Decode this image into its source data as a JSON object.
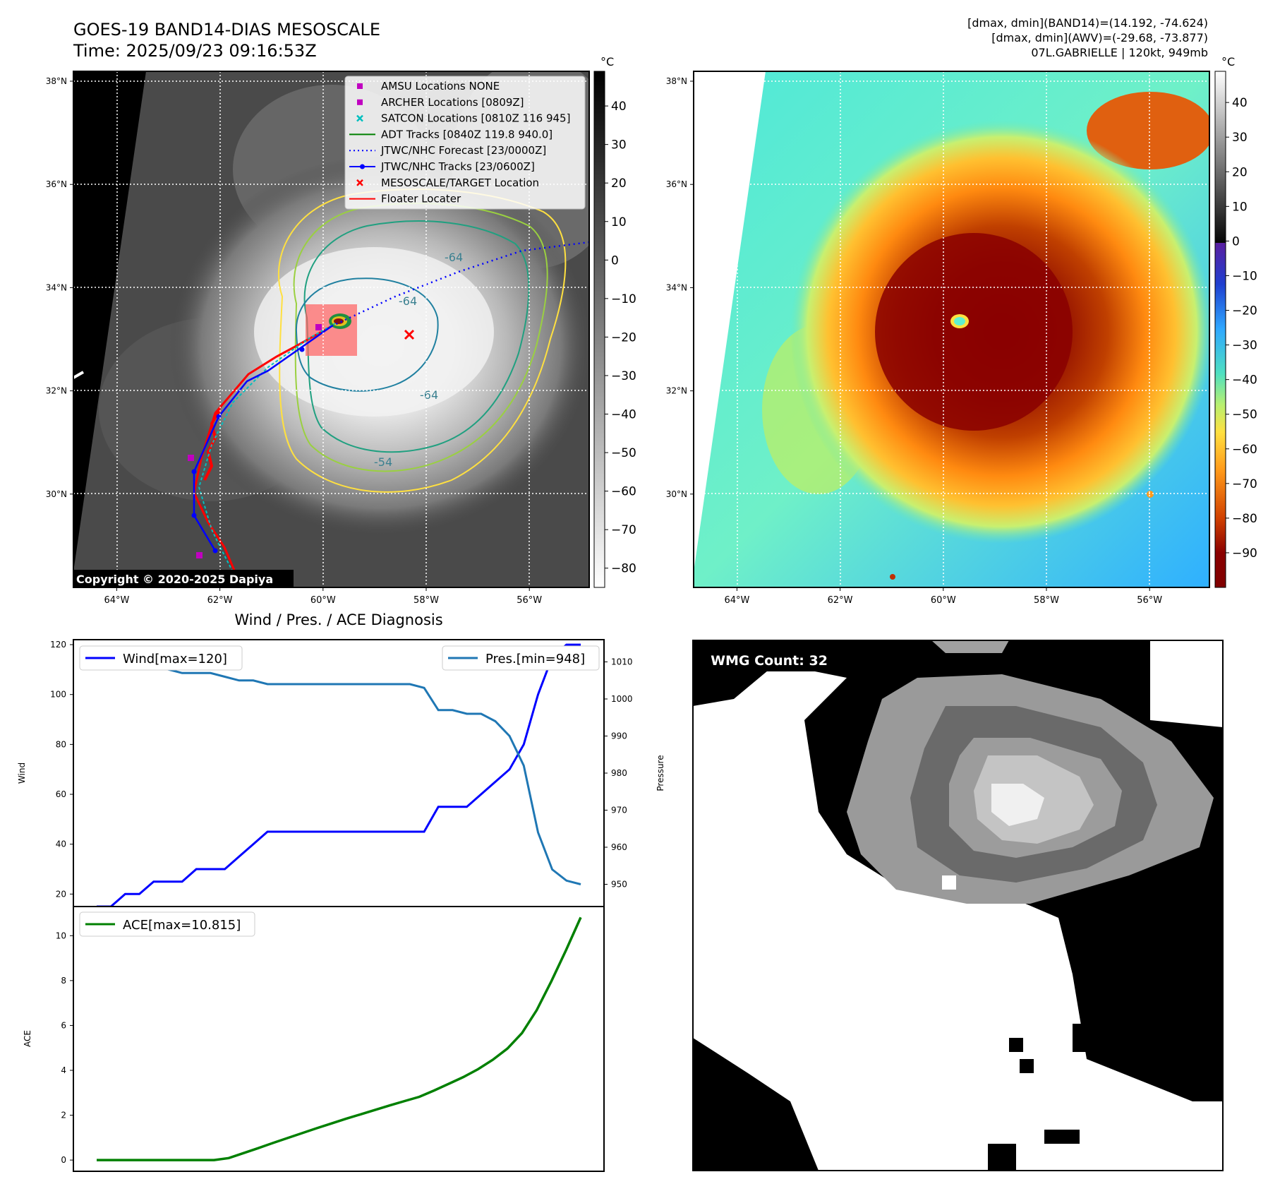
{
  "header": {
    "title_line1": "GOES-19 BAND14-DIAS MESOSCALE",
    "title_line2": "Time: 2025/09/23 09:16:53Z",
    "stats_line1": "[dmax, dmin](BAND14)=(14.192, -74.624)",
    "stats_line2": "[dmax, dmin](AWV)=(-29.68, -73.877)",
    "stats_line3": "07L.GABRIELLE | 120kt, 949mb"
  },
  "map": {
    "lon_ticks": [
      "64°W",
      "62°W",
      "60°W",
      "58°W",
      "56°W"
    ],
    "lat_ticks": [
      "38°N",
      "36°N",
      "34°N",
      "32°N",
      "30°N"
    ],
    "copyright": "Copyright © 2020-2025 Dapiya",
    "contour_labels": [
      "-64",
      "-64",
      "-54",
      "-64"
    ],
    "legend": [
      {
        "label": "AMSU Locations NONE",
        "marker": "square",
        "color": "#c000c0"
      },
      {
        "label": "ARCHER Locations [0809Z]",
        "marker": "square",
        "color": "#c000c0"
      },
      {
        "label": "SATCON Locations [0810Z 116 945]",
        "marker": "x",
        "color": "#00bfbf"
      },
      {
        "label": "ADT Tracks [0840Z 119.8 940.0]",
        "marker": "line",
        "color": "#008000"
      },
      {
        "label": "JTWC/NHC Forecast [23/0000Z]",
        "marker": "dotted",
        "color": "#0000ff"
      },
      {
        "label": "JTWC/NHC Tracks [23/0600Z]",
        "marker": "line-dot",
        "color": "#0000ff"
      },
      {
        "label": "MESOSCALE/TARGET Location",
        "marker": "x",
        "color": "#ff0000"
      },
      {
        "label": "Floater Locater",
        "marker": "line",
        "color": "#ff0000"
      }
    ]
  },
  "colorbar_gray": {
    "unit": "°C",
    "ticks": [
      "40",
      "30",
      "20",
      "10",
      "0",
      "−10",
      "−20",
      "−30",
      "−40",
      "−50",
      "−60",
      "−70",
      "−80"
    ],
    "range": [
      -85,
      49
    ]
  },
  "colorbar_color": {
    "unit": "°C",
    "ticks": [
      "40",
      "30",
      "20",
      "10",
      "0",
      "−10",
      "−20",
      "−30",
      "−40",
      "−50",
      "−60",
      "−70",
      "−80",
      "−90"
    ],
    "range": [
      -100,
      49
    ]
  },
  "chart_data": [
    {
      "type": "line",
      "title": "Wind / Pres. / ACE Diagnosis",
      "ylabel": "Wind",
      "ylabel_right": "Pressure",
      "left_ylim": [
        15,
        122
      ],
      "right_ylim": [
        944,
        1016
      ],
      "left_ticks": [
        "20",
        "40",
        "60",
        "80",
        "100",
        "120"
      ],
      "right_ticks": [
        "950",
        "960",
        "970",
        "980",
        "990",
        "1000",
        "1010"
      ],
      "series": [
        {
          "name": "Wind[max=120]",
          "axis": "left",
          "color": "#0000ff",
          "values": [
            15,
            15,
            20,
            20,
            25,
            25,
            25,
            30,
            30,
            30,
            35,
            40,
            45,
            45,
            45,
            45,
            45,
            45,
            45,
            45,
            45,
            45,
            45,
            45,
            55,
            55,
            55,
            60,
            65,
            70,
            80,
            100,
            115,
            120,
            120
          ]
        },
        {
          "name": "Pres.[min=948]",
          "axis": "right",
          "color": "#1f77b4",
          "values": [
            1010,
            1010,
            1009,
            1009,
            1009,
            1008,
            1007,
            1007,
            1007,
            1006,
            1005,
            1005,
            1004,
            1004,
            1004,
            1004,
            1004,
            1004,
            1004,
            1004,
            1004,
            1004,
            1004,
            1003,
            997,
            997,
            996,
            996,
            994,
            990,
            982,
            964,
            954,
            951,
            950
          ]
        }
      ]
    },
    {
      "type": "line",
      "ylabel": "ACE",
      "ylim": [
        -0.5,
        11.3
      ],
      "ticks": [
        "0",
        "2",
        "4",
        "6",
        "8",
        "10"
      ],
      "series": [
        {
          "name": "ACE[max=10.815]",
          "color": "#008000",
          "values": [
            0,
            0,
            0,
            0,
            0,
            0,
            0,
            0,
            0,
            0.09,
            0.31,
            0.53,
            0.76,
            0.98,
            1.2,
            1.42,
            1.63,
            1.84,
            2.04,
            2.24,
            2.44,
            2.63,
            2.82,
            3.1,
            3.4,
            3.7,
            4.05,
            4.47,
            4.97,
            5.66,
            6.68,
            7.97,
            9.36,
            10.815
          ]
        }
      ]
    }
  ],
  "wmg": {
    "badge": "WMG Count: 32"
  }
}
